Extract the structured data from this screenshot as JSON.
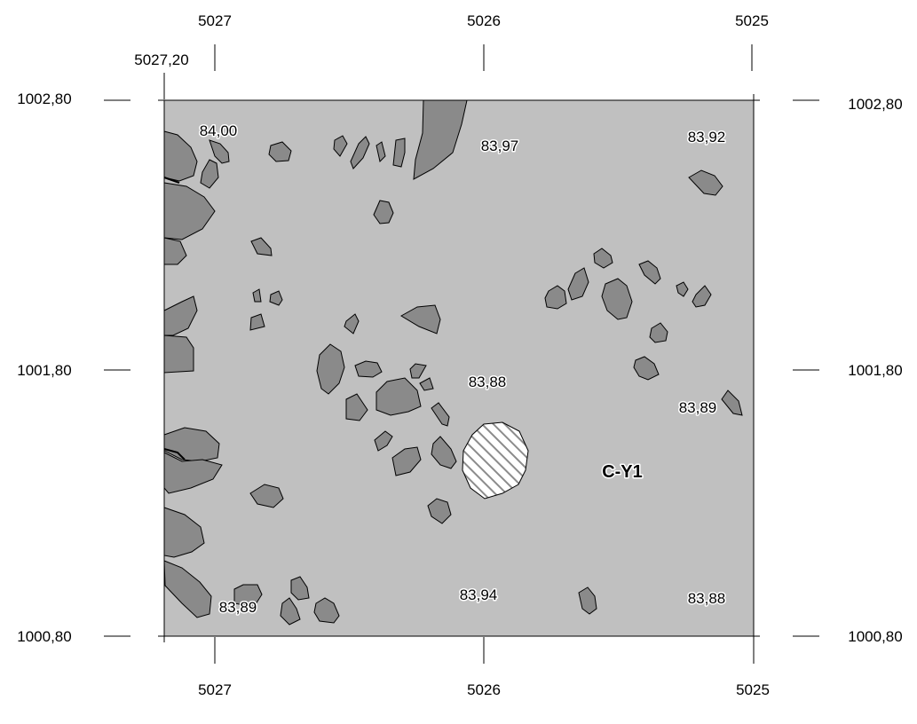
{
  "grid_labels": {
    "x_top": [
      "5027",
      "5026",
      "5025"
    ],
    "x_bottom": [
      "5027",
      "5026",
      "5025"
    ],
    "x_corner": "5027,20",
    "y_left": [
      "1002,80",
      "1001,80",
      "1000,80"
    ],
    "y_right": [
      "1002,80",
      "1001,80",
      "1000,80"
    ]
  },
  "elevations": [
    "84,00",
    "83,97",
    "83,92",
    "83,88",
    "83,89",
    "83,94",
    "83,88",
    "83,89"
  ],
  "feature_label": "C-Y1",
  "colors": {
    "sediment_fill": "#c0c0c0",
    "stone_fill": "#8a8a8a",
    "outline": "#000000",
    "hatch": "#8c8c8c",
    "background": "#ffffff"
  }
}
